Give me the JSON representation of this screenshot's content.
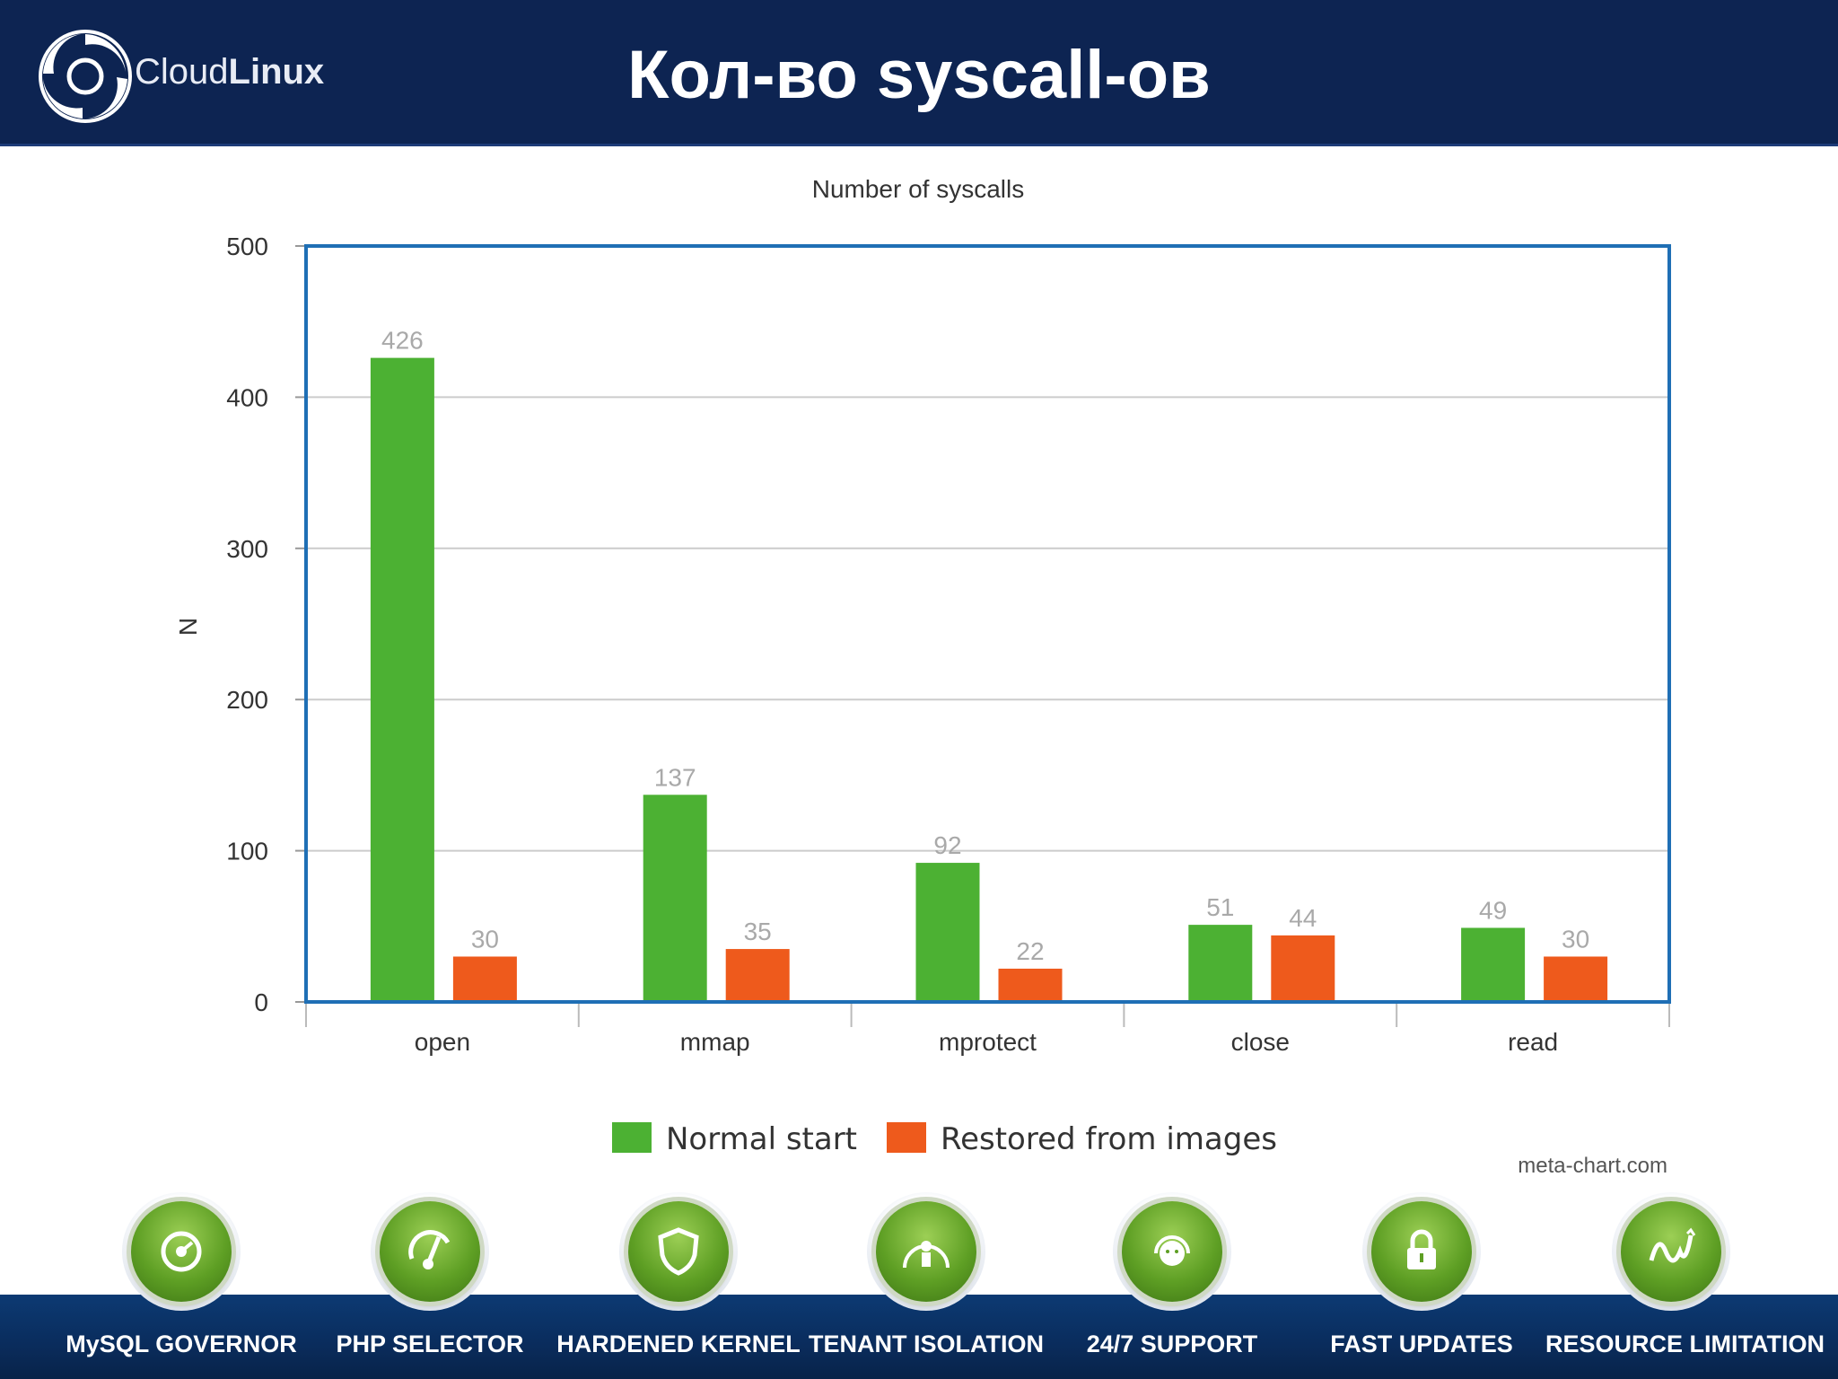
{
  "header": {
    "brand_light": "Cloud",
    "brand_bold": "Linux",
    "title": "Кол-во syscall-ов"
  },
  "colors": {
    "normal": "#4cb133",
    "restored": "#ee5a1c",
    "header_bg": "#0d2452",
    "frame": "#1f6fb5"
  },
  "chart_data": {
    "type": "bar",
    "title": "Number of syscalls",
    "xlabel": "",
    "ylabel": "N",
    "ylim": [
      0,
      500
    ],
    "yticks": [
      0,
      100,
      200,
      300,
      400,
      500
    ],
    "categories": [
      "open",
      "mmap",
      "mprotect",
      "close",
      "read"
    ],
    "series": [
      {
        "name": "Normal start",
        "values": [
          426,
          137,
          92,
          51,
          49
        ]
      },
      {
        "name": "Restored from images",
        "values": [
          30,
          35,
          22,
          44,
          30
        ]
      }
    ],
    "grid": true,
    "legend": "bottom-center",
    "credit": "meta-chart.com"
  },
  "features": [
    {
      "label": "MySQL GOVERNOR",
      "icon": "speedometer-icon"
    },
    {
      "label": "PHP SELECTOR",
      "icon": "selector-dial-icon"
    },
    {
      "label": "HARDENED KERNEL",
      "icon": "shield-icon"
    },
    {
      "label": "TENANT ISOLATION",
      "icon": "dome-person-icon"
    },
    {
      "label": "24/7 SUPPORT",
      "icon": "headset-icon"
    },
    {
      "label": "FAST UPDATES",
      "icon": "lock-icon"
    },
    {
      "label": "RESOURCE LIMITATION",
      "icon": "wave-graph-icon"
    }
  ]
}
